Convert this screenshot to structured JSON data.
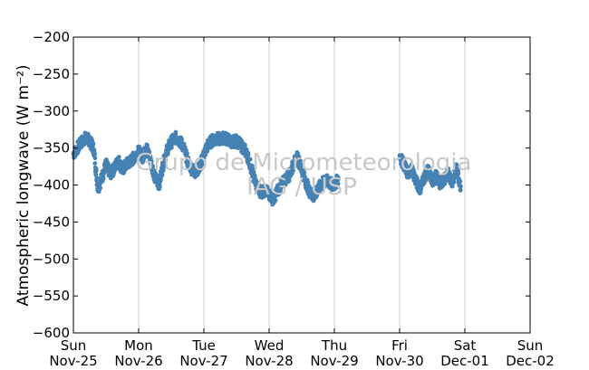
{
  "chart_data": {
    "type": "scatter",
    "title": "",
    "xlabel": "",
    "ylabel": "Atmospheric longwave (W m⁻²)",
    "ylim": [
      -600,
      -200
    ],
    "xlim": [
      "2012-11-25",
      "2012-12-02"
    ],
    "yticks": [
      -200,
      -250,
      -300,
      -350,
      -400,
      -450,
      -500,
      -550,
      -600
    ],
    "xticks": [
      {
        "day": "Sun",
        "date": "Nov-25"
      },
      {
        "day": "Mon",
        "date": "Nov-26"
      },
      {
        "day": "Tue",
        "date": "Nov-27"
      },
      {
        "day": "Wed",
        "date": "Nov-28"
      },
      {
        "day": "Thu",
        "date": "Nov-29"
      },
      {
        "day": "Fri",
        "date": "Nov-30"
      },
      {
        "day": "Sat",
        "date": "Dec-01"
      },
      {
        "day": "Sun",
        "date": "Dec-02"
      }
    ],
    "grid": "vertical",
    "series": [
      {
        "color": "#4682b4",
        "points": [
          [
            "2012-11-25 00:00",
            -358
          ],
          [
            "2012-11-25 01:30",
            -350
          ],
          [
            "2012-11-25 03:00",
            -342
          ],
          [
            "2012-11-25 04:30",
            -336
          ],
          [
            "2012-11-25 06:00",
            -340
          ],
          [
            "2012-11-25 07:30",
            -352
          ],
          [
            "2012-11-25 09:00",
            -405
          ],
          [
            "2012-11-25 10:30",
            -390
          ],
          [
            "2012-11-25 12:00",
            -372
          ],
          [
            "2012-11-25 13:30",
            -385
          ],
          [
            "2012-11-25 15:00",
            -378
          ],
          [
            "2012-11-25 16:30",
            -366
          ],
          [
            "2012-11-25 18:00",
            -380
          ],
          [
            "2012-11-25 19:30",
            -372
          ],
          [
            "2012-11-25 21:00",
            -368
          ],
          [
            "2012-11-25 22:30",
            -362
          ],
          [
            "2012-11-26 00:00",
            -355
          ],
          [
            "2012-11-26 01:30",
            -362
          ],
          [
            "2012-11-26 03:00",
            -350
          ],
          [
            "2012-11-26 04:30",
            -368
          ],
          [
            "2012-11-26 06:00",
            -390
          ],
          [
            "2012-11-26 07:30",
            -400
          ],
          [
            "2012-11-26 09:00",
            -372
          ],
          [
            "2012-11-26 10:30",
            -352
          ],
          [
            "2012-11-26 12:00",
            -342
          ],
          [
            "2012-11-26 13:30",
            -336
          ],
          [
            "2012-11-26 15:00",
            -340
          ],
          [
            "2012-11-26 16:30",
            -348
          ],
          [
            "2012-11-26 18:00",
            -368
          ],
          [
            "2012-11-26 19:30",
            -378
          ],
          [
            "2012-11-26 21:00",
            -382
          ],
          [
            "2012-11-26 22:30",
            -376
          ],
          [
            "2012-11-27 00:00",
            -358
          ],
          [
            "2012-11-27 01:30",
            -346
          ],
          [
            "2012-11-27 03:00",
            -340
          ],
          [
            "2012-11-27 04:30",
            -337
          ],
          [
            "2012-11-27 06:00",
            -338
          ],
          [
            "2012-11-27 07:30",
            -336
          ],
          [
            "2012-11-27 09:00",
            -339
          ],
          [
            "2012-11-27 10:30",
            -342
          ],
          [
            "2012-11-27 12:00",
            -340
          ],
          [
            "2012-11-27 13:30",
            -346
          ],
          [
            "2012-11-27 15:00",
            -352
          ],
          [
            "2012-11-27 16:30",
            -365
          ],
          [
            "2012-11-27 18:00",
            -385
          ],
          [
            "2012-11-27 19:30",
            -402
          ],
          [
            "2012-11-27 21:00",
            -410
          ],
          [
            "2012-11-27 22:30",
            -408
          ],
          [
            "2012-11-28 00:00",
            -412
          ],
          [
            "2012-11-28 01:30",
            -420
          ],
          [
            "2012-11-28 03:00",
            -408
          ],
          [
            "2012-11-28 04:30",
            -400
          ],
          [
            "2012-11-28 06:00",
            -392
          ],
          [
            "2012-11-28 07:30",
            -386
          ],
          [
            "2012-11-28 09:00",
            -372
          ],
          [
            "2012-11-28 10:30",
            -362
          ],
          [
            "2012-11-28 12:00",
            -380
          ],
          [
            "2012-11-28 13:30",
            -396
          ],
          [
            "2012-11-28 15:00",
            -410
          ],
          [
            "2012-11-28 16:30",
            -416
          ],
          [
            "2012-11-28 18:00",
            -405
          ],
          [
            "2012-11-28 19:30",
            -398
          ],
          [
            "2012-11-28 21:00",
            -394
          ],
          [
            "2012-11-28 22:30",
            -398
          ],
          [
            "2012-11-29 00:00",
            -400
          ],
          [
            "2012-11-29 01:30",
            -392
          ],
          [
            "2012-11-30 00:00",
            -360
          ],
          [
            "2012-11-30 01:30",
            -372
          ],
          [
            "2012-11-30 03:00",
            -385
          ],
          [
            "2012-11-30 04:30",
            -378
          ],
          [
            "2012-11-30 06:00",
            -395
          ],
          [
            "2012-11-30 07:30",
            -405
          ],
          [
            "2012-11-30 09:00",
            -390
          ],
          [
            "2012-11-30 10:30",
            -380
          ],
          [
            "2012-11-30 12:00",
            -395
          ],
          [
            "2012-11-30 13:30",
            -388
          ],
          [
            "2012-11-30 15:00",
            -398
          ],
          [
            "2012-11-30 16:30",
            -392
          ],
          [
            "2012-11-30 18:00",
            -385
          ],
          [
            "2012-11-30 19:30",
            -396
          ],
          [
            "2012-11-30 21:00",
            -378
          ],
          [
            "2012-11-30 22:30",
            -402
          ]
        ]
      }
    ]
  },
  "watermark": {
    "line1": "Grupo de Micrometeorologia",
    "line2": "IAG / USP"
  }
}
